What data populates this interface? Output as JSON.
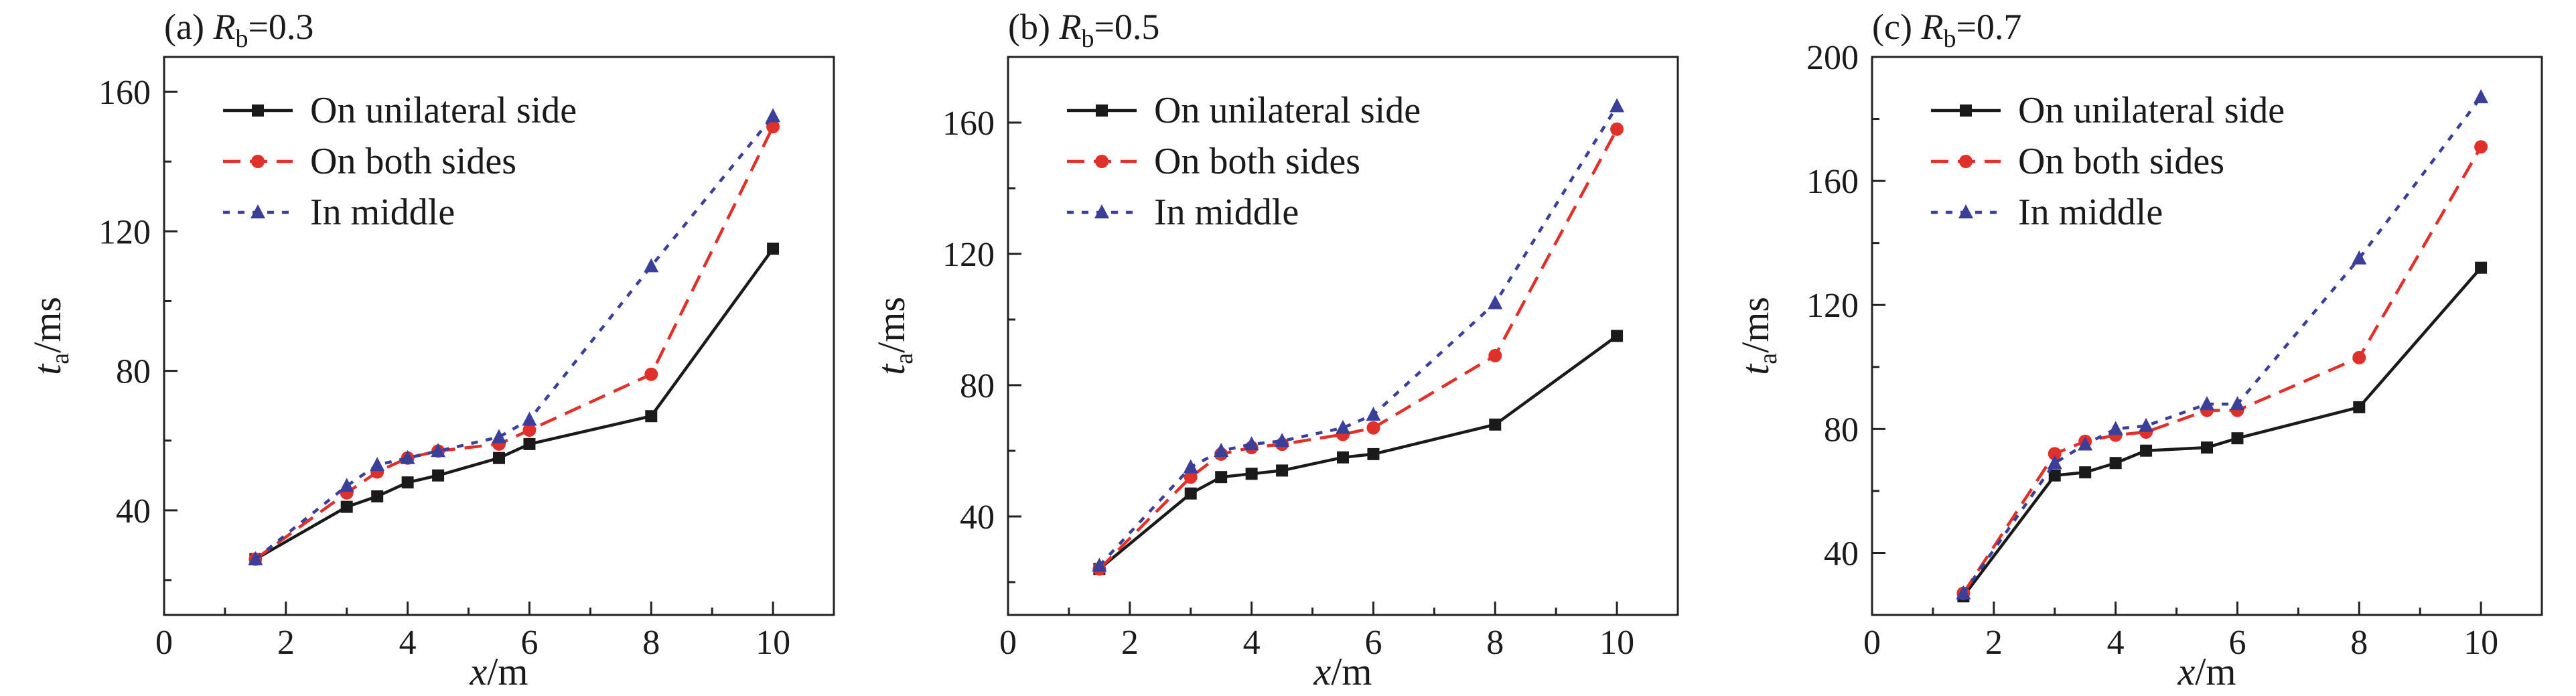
{
  "figure": {
    "series_styles": [
      {
        "key": "unilateral",
        "color": "#1a1a1a",
        "marker": "square",
        "dash": "solid"
      },
      {
        "key": "both",
        "color": "#e0302a",
        "marker": "circle",
        "dash": "dashed"
      },
      {
        "key": "middle",
        "color": "#3a3f9a",
        "marker": "triangle",
        "dash": "dotted"
      }
    ]
  },
  "chart_data": [
    {
      "type": "line",
      "title_prefix": "(a) ",
      "title_var": "R",
      "title_sub": "b",
      "title_suffix": "=0.3",
      "xlabel_var": "x",
      "xlabel_unit": "/m",
      "ylabel_var": "t",
      "ylabel_sub": "a",
      "ylabel_unit": "/ms",
      "xlim": [
        0,
        11
      ],
      "ylim": [
        10,
        170
      ],
      "xticks": [
        0,
        2,
        4,
        6,
        8,
        10
      ],
      "yticks": [
        40,
        80,
        120,
        160
      ],
      "legend_position": "top-left",
      "series": [
        {
          "name": "On unilateral side",
          "x": [
            1.5,
            3,
            3.5,
            4,
            4.5,
            5.5,
            6,
            8,
            10
          ],
          "y": [
            26,
            41,
            44,
            48,
            50,
            55,
            59,
            67,
            115
          ]
        },
        {
          "name": "On both sides",
          "x": [
            1.5,
            3,
            3.5,
            4,
            4.5,
            5.5,
            6,
            8,
            10
          ],
          "y": [
            26,
            45,
            51,
            55,
            57,
            59,
            63,
            79,
            150
          ]
        },
        {
          "name": "In middle",
          "x": [
            1.5,
            3,
            3.5,
            4,
            4.5,
            5.5,
            6,
            8,
            10
          ],
          "y": [
            26,
            47,
            53,
            55,
            57,
            61,
            66,
            110,
            153
          ]
        }
      ]
    },
    {
      "type": "line",
      "title_prefix": "(b) ",
      "title_var": "R",
      "title_sub": "b",
      "title_suffix": "=0.5",
      "xlabel_var": "x",
      "xlabel_unit": "/m",
      "ylabel_var": "t",
      "ylabel_sub": "a",
      "ylabel_unit": "/ms",
      "xlim": [
        0,
        11
      ],
      "ylim": [
        10,
        180
      ],
      "xticks": [
        0,
        2,
        4,
        6,
        8,
        10
      ],
      "yticks": [
        40,
        80,
        120,
        160
      ],
      "legend_position": "top-left",
      "series": [
        {
          "name": "On unilateral side",
          "x": [
            1.5,
            3,
            3.5,
            4,
            4.5,
            5.5,
            6,
            8,
            10
          ],
          "y": [
            24,
            47,
            52,
            53,
            54,
            58,
            59,
            68,
            95
          ]
        },
        {
          "name": "On both sides",
          "x": [
            1.5,
            3,
            3.5,
            4,
            4.5,
            5.5,
            6,
            8,
            10
          ],
          "y": [
            24,
            52,
            59,
            61,
            62,
            65,
            67,
            89,
            158
          ]
        },
        {
          "name": "In middle",
          "x": [
            1.5,
            3,
            3.5,
            4,
            4.5,
            5.5,
            6,
            8,
            10
          ],
          "y": [
            25,
            55,
            60,
            62,
            63,
            67,
            71,
            105,
            165
          ]
        }
      ]
    },
    {
      "type": "line",
      "title_prefix": "(c) ",
      "title_var": "R",
      "title_sub": "b",
      "title_suffix": "=0.7",
      "xlabel_var": "x",
      "xlabel_unit": "/m",
      "ylabel_var": "t",
      "ylabel_sub": "a",
      "ylabel_unit": "/ms",
      "xlim": [
        0,
        11
      ],
      "ylim": [
        20,
        200
      ],
      "xticks": [
        0,
        2,
        4,
        6,
        8,
        10
      ],
      "yticks": [
        40,
        80,
        120,
        160,
        200
      ],
      "legend_position": "top-left",
      "series": [
        {
          "name": "On unilateral side",
          "x": [
            1.5,
            3,
            3.5,
            4,
            4.5,
            5.5,
            6,
            8,
            10
          ],
          "y": [
            26,
            65,
            66,
            69,
            73,
            74,
            77,
            87,
            132
          ]
        },
        {
          "name": "On both sides",
          "x": [
            1.5,
            3,
            3.5,
            4,
            4.5,
            5.5,
            6,
            8,
            10
          ],
          "y": [
            27,
            72,
            76,
            78,
            79,
            86,
            86,
            103,
            171
          ]
        },
        {
          "name": "In middle",
          "x": [
            1.5,
            3,
            3.5,
            4,
            4.5,
            5.5,
            6,
            8,
            10
          ],
          "y": [
            27,
            69,
            75,
            80,
            81,
            88,
            88,
            135,
            187
          ]
        }
      ]
    }
  ]
}
